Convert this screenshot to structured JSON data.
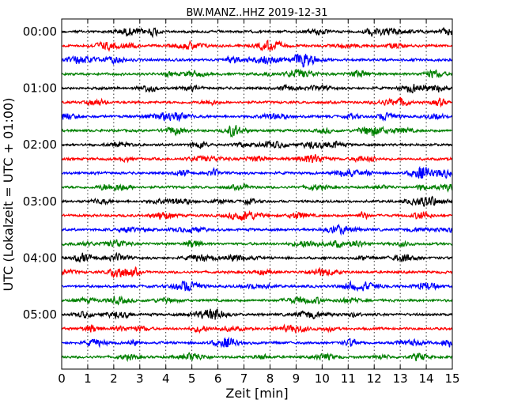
{
  "chart_data": {
    "type": "line",
    "title": "BW.MANZ..HHZ 2019-12-31",
    "xlabel": "Zeit  [min]",
    "ylabel": "UTC (Lokalzeit = UTC + 01:00)",
    "xlim": [
      0,
      15
    ],
    "x_ticks": [
      "0",
      "1",
      "2",
      "3",
      "4",
      "5",
      "6",
      "7",
      "8",
      "9",
      "10",
      "11",
      "12",
      "13",
      "14",
      "15"
    ],
    "y_ticks": [
      {
        "label": "00:00",
        "row": 0
      },
      {
        "label": "01:00",
        "row": 4
      },
      {
        "label": "02:00",
        "row": 8
      },
      {
        "label": "03:00",
        "row": 12
      },
      {
        "label": "04:00",
        "row": 16
      },
      {
        "label": "05:00",
        "row": 20
      }
    ],
    "trace_count": 24,
    "trace_interval_min": 15,
    "trace_colors": [
      "#000000",
      "#ff0000",
      "#0000ff",
      "#008000"
    ],
    "vertical_grid": "dotted"
  }
}
